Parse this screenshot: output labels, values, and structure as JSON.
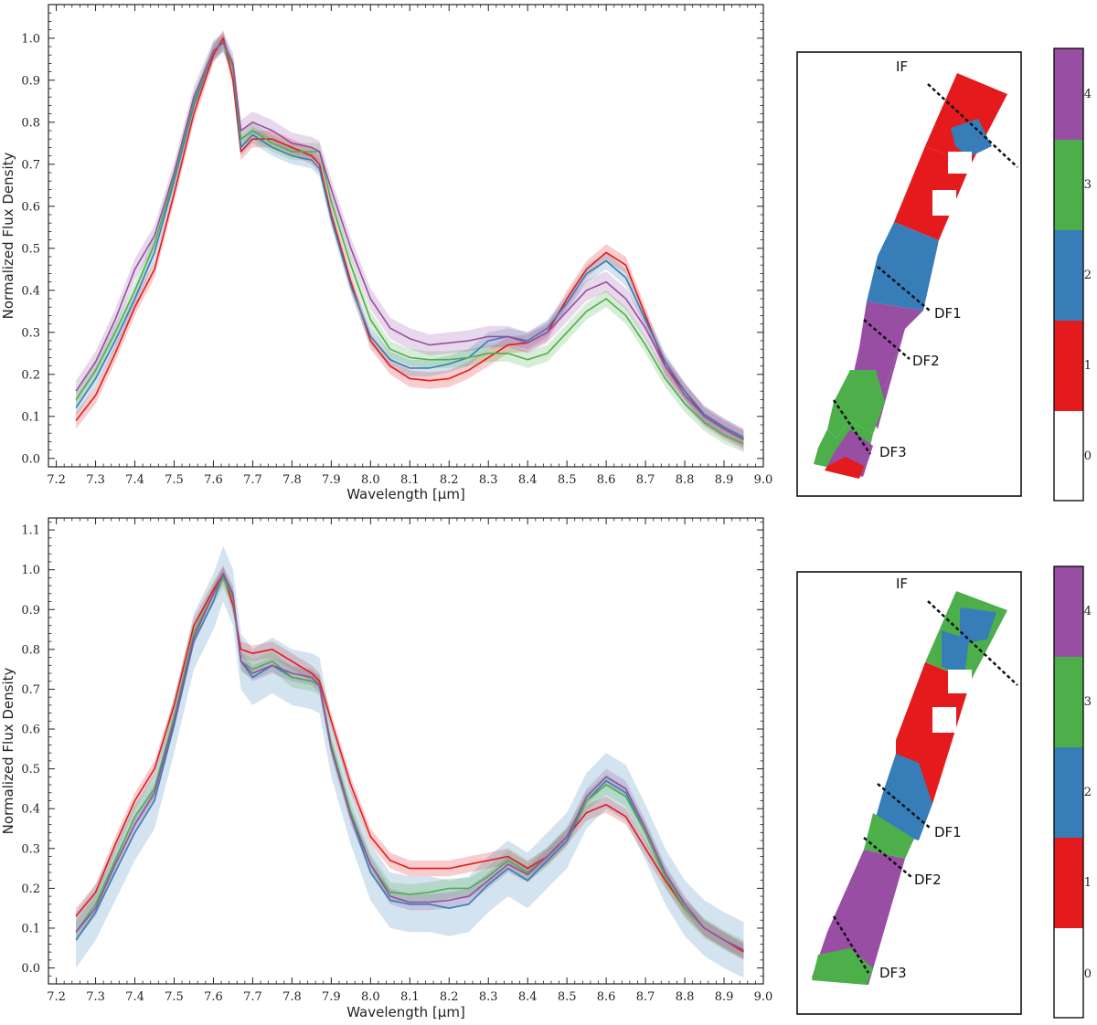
{
  "colors": {
    "0": "#ffffff",
    "1": "#e41a1c",
    "2": "#377eb8",
    "3": "#4daf4a",
    "4": "#984ea3"
  },
  "chart_data": [
    {
      "type": "line",
      "panel": "top",
      "xlabel": "Wavelength [μm]",
      "ylabel": "Normalized Flux Density",
      "xlim": [
        7.18,
        9.0
      ],
      "ylim": [
        -0.02,
        1.08
      ],
      "xticks": [
        7.2,
        7.3,
        7.4,
        7.5,
        7.6,
        7.7,
        7.8,
        7.9,
        8.0,
        8.1,
        8.2,
        8.3,
        8.4,
        8.5,
        8.6,
        8.7,
        8.8,
        8.9,
        9.0
      ],
      "xtick_labels": [
        "7.2",
        "7.3",
        "7.4",
        "7.5",
        "7.6",
        "7.7",
        "7.8",
        "7.9",
        "8.0",
        "8.1",
        "8.2",
        "8.3",
        "8.4",
        "8.5",
        "8.6",
        "8.7",
        "8.8",
        "8.9",
        "9.0"
      ],
      "yticks": [
        0.0,
        0.1,
        0.2,
        0.3,
        0.4,
        0.5,
        0.6,
        0.7,
        0.8,
        0.9,
        1.0
      ],
      "ytick_labels": [
        "0.0",
        "0.1",
        "0.2",
        "0.3",
        "0.4",
        "0.5",
        "0.6",
        "0.7",
        "0.8",
        "0.9",
        "1.0"
      ],
      "x": [
        7.25,
        7.3,
        7.35,
        7.4,
        7.45,
        7.5,
        7.55,
        7.6,
        7.625,
        7.65,
        7.67,
        7.7,
        7.75,
        7.8,
        7.85,
        7.87,
        7.9,
        7.95,
        8.0,
        8.05,
        8.1,
        8.15,
        8.2,
        8.25,
        8.3,
        8.35,
        8.4,
        8.45,
        8.5,
        8.55,
        8.6,
        8.65,
        8.7,
        8.75,
        8.8,
        8.85,
        8.9,
        8.95
      ],
      "series": [
        {
          "name": "1",
          "color": "#e41a1c",
          "band": 0.02,
          "values": [
            0.09,
            0.15,
            0.25,
            0.36,
            0.45,
            0.63,
            0.82,
            0.96,
            1.0,
            0.9,
            0.73,
            0.76,
            0.76,
            0.74,
            0.72,
            0.7,
            0.58,
            0.42,
            0.28,
            0.22,
            0.19,
            0.185,
            0.19,
            0.21,
            0.24,
            0.27,
            0.275,
            0.3,
            0.38,
            0.45,
            0.49,
            0.46,
            0.34,
            0.22,
            0.16,
            0.1,
            0.07,
            0.045
          ]
        },
        {
          "name": "2",
          "color": "#377eb8",
          "band": 0.02,
          "values": [
            0.12,
            0.19,
            0.28,
            0.38,
            0.49,
            0.66,
            0.84,
            0.97,
            0.99,
            0.93,
            0.74,
            0.77,
            0.74,
            0.72,
            0.71,
            0.69,
            0.57,
            0.41,
            0.29,
            0.235,
            0.215,
            0.215,
            0.225,
            0.24,
            0.28,
            0.29,
            0.28,
            0.31,
            0.37,
            0.44,
            0.47,
            0.43,
            0.33,
            0.23,
            0.16,
            0.105,
            0.075,
            0.05
          ]
        },
        {
          "name": "3",
          "color": "#4daf4a",
          "band": 0.02,
          "values": [
            0.14,
            0.21,
            0.3,
            0.4,
            0.51,
            0.67,
            0.85,
            0.97,
            0.99,
            0.93,
            0.76,
            0.78,
            0.75,
            0.73,
            0.73,
            0.73,
            0.61,
            0.46,
            0.33,
            0.26,
            0.24,
            0.235,
            0.235,
            0.24,
            0.25,
            0.25,
            0.235,
            0.25,
            0.3,
            0.35,
            0.38,
            0.34,
            0.27,
            0.19,
            0.13,
            0.085,
            0.055,
            0.035
          ]
        },
        {
          "name": "4",
          "color": "#984ea3",
          "band": 0.025,
          "values": [
            0.16,
            0.23,
            0.33,
            0.45,
            0.53,
            0.68,
            0.86,
            0.97,
            0.99,
            0.94,
            0.78,
            0.8,
            0.78,
            0.75,
            0.74,
            0.73,
            0.64,
            0.5,
            0.38,
            0.31,
            0.285,
            0.27,
            0.275,
            0.28,
            0.29,
            0.29,
            0.275,
            0.3,
            0.35,
            0.4,
            0.42,
            0.38,
            0.31,
            0.22,
            0.15,
            0.1,
            0.07,
            0.045
          ]
        }
      ]
    },
    {
      "type": "line",
      "panel": "bottom",
      "xlabel": "Wavelength [μm]",
      "ylabel": "Normalized Flux Density",
      "xlim": [
        7.18,
        9.0
      ],
      "ylim": [
        -0.04,
        1.13
      ],
      "xticks": [
        7.2,
        7.3,
        7.4,
        7.5,
        7.6,
        7.7,
        7.8,
        7.9,
        8.0,
        8.1,
        8.2,
        8.3,
        8.4,
        8.5,
        8.6,
        8.7,
        8.8,
        8.9,
        9.0
      ],
      "xtick_labels": [
        "7.2",
        "7.3",
        "7.4",
        "7.5",
        "7.6",
        "7.7",
        "7.8",
        "7.9",
        "8.0",
        "8.1",
        "8.2",
        "8.3",
        "8.4",
        "8.5",
        "8.6",
        "8.7",
        "8.8",
        "8.9",
        "9.0"
      ],
      "yticks": [
        0.0,
        0.1,
        0.2,
        0.3,
        0.4,
        0.5,
        0.6,
        0.7,
        0.8,
        0.9,
        1.0,
        1.1
      ],
      "ytick_labels": [
        "0.0",
        "0.1",
        "0.2",
        "0.3",
        "0.4",
        "0.5",
        "0.6",
        "0.7",
        "0.8",
        "0.9",
        "1.0",
        "1.1"
      ],
      "x": [
        7.25,
        7.3,
        7.35,
        7.4,
        7.45,
        7.5,
        7.55,
        7.6,
        7.625,
        7.65,
        7.67,
        7.7,
        7.75,
        7.8,
        7.85,
        7.87,
        7.9,
        7.95,
        8.0,
        8.05,
        8.1,
        8.15,
        8.2,
        8.25,
        8.3,
        8.35,
        8.4,
        8.45,
        8.5,
        8.55,
        8.6,
        8.65,
        8.7,
        8.75,
        8.8,
        8.85,
        8.9,
        8.95
      ],
      "series": [
        {
          "name": "1",
          "color": "#e41a1c",
          "band": 0.02,
          "values": [
            0.13,
            0.19,
            0.31,
            0.42,
            0.5,
            0.66,
            0.86,
            0.95,
            0.99,
            0.91,
            0.8,
            0.79,
            0.8,
            0.77,
            0.74,
            0.72,
            0.62,
            0.46,
            0.33,
            0.27,
            0.25,
            0.25,
            0.25,
            0.26,
            0.27,
            0.28,
            0.25,
            0.28,
            0.33,
            0.39,
            0.41,
            0.38,
            0.3,
            0.22,
            0.15,
            0.1,
            0.07,
            0.04
          ]
        },
        {
          "name": "2",
          "color": "#377eb8",
          "band": 0.07,
          "values": [
            0.07,
            0.14,
            0.24,
            0.34,
            0.42,
            0.61,
            0.82,
            0.92,
            0.99,
            0.93,
            0.77,
            0.73,
            0.76,
            0.73,
            0.72,
            0.71,
            0.55,
            0.38,
            0.24,
            0.17,
            0.16,
            0.16,
            0.15,
            0.16,
            0.21,
            0.25,
            0.22,
            0.27,
            0.32,
            0.42,
            0.47,
            0.44,
            0.34,
            0.23,
            0.15,
            0.1,
            0.07,
            0.045
          ]
        },
        {
          "name": "3",
          "color": "#4daf4a",
          "band": 0.025,
          "values": [
            0.09,
            0.16,
            0.27,
            0.38,
            0.45,
            0.63,
            0.84,
            0.94,
            0.98,
            0.93,
            0.77,
            0.75,
            0.77,
            0.73,
            0.72,
            0.71,
            0.56,
            0.39,
            0.26,
            0.19,
            0.185,
            0.19,
            0.2,
            0.2,
            0.23,
            0.27,
            0.24,
            0.28,
            0.33,
            0.42,
            0.46,
            0.43,
            0.34,
            0.23,
            0.15,
            0.1,
            0.07,
            0.045
          ]
        },
        {
          "name": "4",
          "color": "#984ea3",
          "band": 0.02,
          "values": [
            0.09,
            0.15,
            0.26,
            0.36,
            0.44,
            0.62,
            0.83,
            0.94,
            0.99,
            0.94,
            0.77,
            0.74,
            0.76,
            0.74,
            0.73,
            0.71,
            0.55,
            0.38,
            0.26,
            0.18,
            0.165,
            0.165,
            0.17,
            0.18,
            0.22,
            0.26,
            0.235,
            0.28,
            0.33,
            0.43,
            0.48,
            0.45,
            0.35,
            0.24,
            0.16,
            0.1,
            0.07,
            0.045
          ]
        }
      ]
    }
  ],
  "maps": [
    {
      "id": "top",
      "regions": [
        {
          "cluster": 1,
          "label": "red region (north)"
        },
        {
          "cluster": 2,
          "label": "blue region"
        },
        {
          "cluster": 4,
          "label": "purple region"
        },
        {
          "cluster": 3,
          "label": "green region"
        },
        {
          "cluster": 1,
          "label": "red region (south tip)"
        }
      ],
      "lines": [
        "IF",
        "DF1",
        "DF2",
        "DF3"
      ],
      "colorbar": {
        "ticks": [
          "0",
          "1",
          "2",
          "3",
          "4"
        ]
      }
    },
    {
      "id": "bottom",
      "regions": [
        {
          "cluster": 3,
          "label": "green region (north tip)"
        },
        {
          "cluster": 1,
          "label": "red region"
        },
        {
          "cluster": 2,
          "label": "blue region"
        },
        {
          "cluster": 4,
          "label": "purple region"
        },
        {
          "cluster": 3,
          "label": "green region (south tip)"
        }
      ],
      "lines": [
        "IF",
        "DF1",
        "DF2",
        "DF3"
      ],
      "colorbar": {
        "ticks": [
          "0",
          "1",
          "2",
          "3",
          "4"
        ]
      }
    }
  ]
}
